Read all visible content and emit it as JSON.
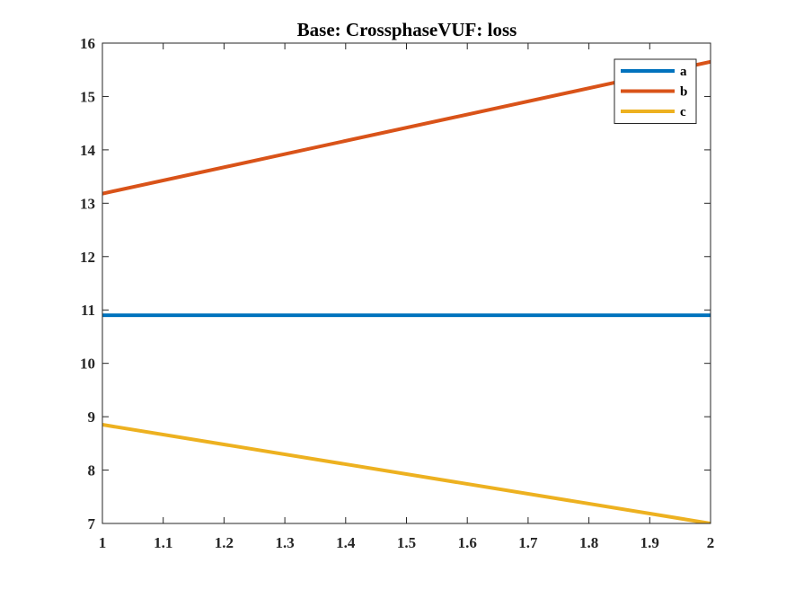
{
  "chart_data": {
    "type": "line",
    "title": "Base: CrossphaseVUF: loss",
    "xlabel": "",
    "ylabel": "",
    "xlim": [
      1,
      2
    ],
    "ylim": [
      7,
      16
    ],
    "x_ticks": [
      1,
      1.1,
      1.2,
      1.3,
      1.4,
      1.5,
      1.6,
      1.7,
      1.8,
      1.9,
      2
    ],
    "x_tick_labels": [
      "1",
      "1.1",
      "1.2",
      "1.3",
      "1.4",
      "1.5",
      "1.6",
      "1.7",
      "1.8",
      "1.9",
      "2"
    ],
    "y_ticks": [
      7,
      8,
      9,
      10,
      11,
      12,
      13,
      14,
      15,
      16
    ],
    "y_tick_labels": [
      "7",
      "8",
      "9",
      "10",
      "11",
      "12",
      "13",
      "14",
      "15",
      "16"
    ],
    "grid": false,
    "legend_position": "top-right",
    "series": [
      {
        "name": "a",
        "color": "#0072BD",
        "x": [
          1,
          2
        ],
        "y": [
          10.9,
          10.9
        ]
      },
      {
        "name": "b",
        "color": "#D95319",
        "x": [
          1,
          2
        ],
        "y": [
          13.18,
          15.65
        ]
      },
      {
        "name": "c",
        "color": "#EDB120",
        "x": [
          1,
          2
        ],
        "y": [
          8.85,
          7.0
        ]
      }
    ]
  }
}
